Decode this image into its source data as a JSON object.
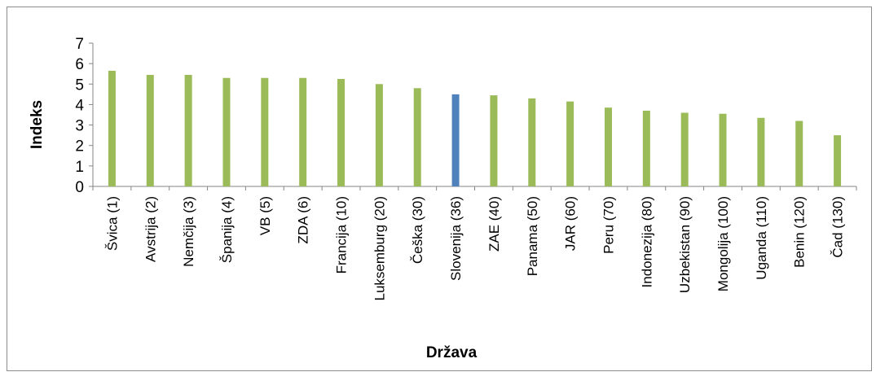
{
  "chart_data": {
    "type": "bar",
    "title": "",
    "xlabel": "Država",
    "ylabel": "Indeks",
    "ylim": [
      0,
      7
    ],
    "yticks": [
      0,
      1,
      2,
      3,
      4,
      5,
      6,
      7
    ],
    "grid": false,
    "legend": "none",
    "categories": [
      "Švica (1)",
      "Avstrija (2)",
      "Nemčija (3)",
      "Španija (4)",
      "VB (5)",
      "ZDA (6)",
      "Francija (10)",
      "Luksemburg (20)",
      "Češka (30)",
      "Slovenija (36)",
      "ZAE (40)",
      "Panama (50)",
      "JAR (60)",
      "Peru (70)",
      "Indonezija (80)",
      "Uzbekistan (90)",
      "Mongolija (100)",
      "Uganda (110)",
      "Benin (120)",
      "Čad (130)"
    ],
    "values": [
      5.65,
      5.45,
      5.45,
      5.3,
      5.3,
      5.3,
      5.25,
      5.0,
      4.8,
      4.5,
      4.45,
      4.3,
      4.15,
      3.85,
      3.7,
      3.6,
      3.55,
      3.35,
      3.2,
      2.5
    ],
    "highlight_index": 9,
    "colors": {
      "bar": "#9BBB59",
      "highlight": "#4F81BD",
      "axis": "#868686"
    }
  }
}
